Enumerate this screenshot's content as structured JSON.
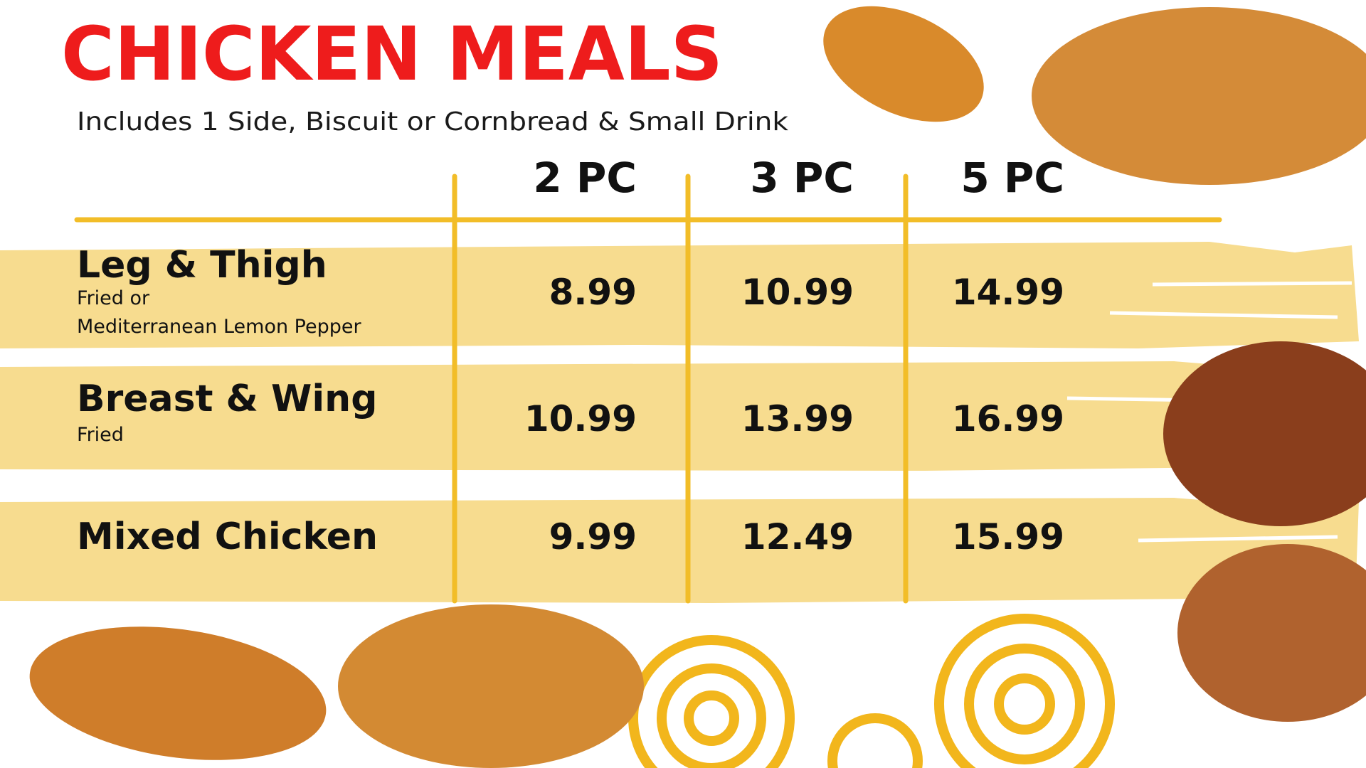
{
  "header": {
    "title": "CHICKEN MEALS",
    "subtitle": "Includes 1 Side, Biscuit or Cornbread & Small Drink"
  },
  "table": {
    "columns": [
      "2 PC",
      "3 PC",
      "5 PC"
    ],
    "rows": [
      {
        "name": "Leg & Thigh",
        "description": [
          "Fried or",
          "Mediterranean Lemon Pepper"
        ],
        "prices": [
          "8.99",
          "10.99",
          "14.99"
        ]
      },
      {
        "name": "Breast & Wing",
        "description": [
          "Fried"
        ],
        "prices": [
          "10.99",
          "13.99",
          "16.99"
        ]
      },
      {
        "name": "Mixed Chicken",
        "description": [],
        "prices": [
          "9.99",
          "12.49",
          "15.99"
        ]
      }
    ]
  }
}
